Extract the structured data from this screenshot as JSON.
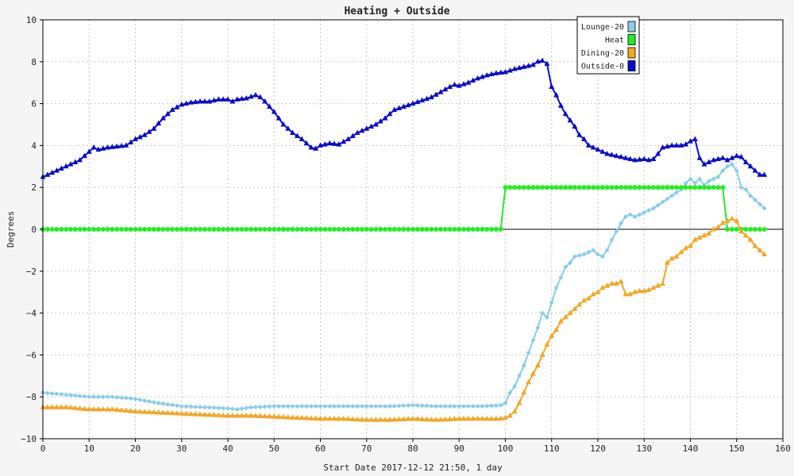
{
  "chart_data": {
    "type": "line",
    "title": "Heating + Outside",
    "xlabel": "Start Date 2017-12-12 21:50, 1 day",
    "ylabel": "Degrees",
    "xlim": [
      0,
      160
    ],
    "ylim": [
      -10,
      10
    ],
    "xticks": [
      0,
      10,
      20,
      30,
      40,
      50,
      60,
      70,
      80,
      90,
      100,
      110,
      120,
      130,
      140,
      150,
      160
    ],
    "yticks": [
      -10,
      -8,
      -6,
      -4,
      -2,
      0,
      2,
      4,
      6,
      8,
      10
    ],
    "grid": true,
    "legend_position": "top-right",
    "series": [
      {
        "name": "Lounge-20",
        "color": "#87ceeb",
        "marker": "diamond",
        "points": [
          [
            0,
            -7.8
          ],
          [
            5,
            -7.9
          ],
          [
            10,
            -8.0
          ],
          [
            15,
            -8.0
          ],
          [
            20,
            -8.1
          ],
          [
            25,
            -8.3
          ],
          [
            30,
            -8.45
          ],
          [
            35,
            -8.5
          ],
          [
            40,
            -8.55
          ],
          [
            42,
            -8.6
          ],
          [
            45,
            -8.5
          ],
          [
            50,
            -8.45
          ],
          [
            55,
            -8.45
          ],
          [
            60,
            -8.45
          ],
          [
            65,
            -8.45
          ],
          [
            70,
            -8.45
          ],
          [
            75,
            -8.45
          ],
          [
            80,
            -8.4
          ],
          [
            85,
            -8.45
          ],
          [
            90,
            -8.45
          ],
          [
            95,
            -8.45
          ],
          [
            99,
            -8.4
          ],
          [
            100,
            -8.3
          ],
          [
            101,
            -7.8
          ],
          [
            102,
            -7.5
          ],
          [
            103,
            -7.0
          ],
          [
            104,
            -6.5
          ],
          [
            105,
            -5.9
          ],
          [
            106,
            -5.3
          ],
          [
            107,
            -4.7
          ],
          [
            108,
            -4.0
          ],
          [
            109,
            -4.2
          ],
          [
            110,
            -3.5
          ],
          [
            111,
            -2.8
          ],
          [
            112,
            -2.3
          ],
          [
            113,
            -1.8
          ],
          [
            114,
            -1.6
          ],
          [
            115,
            -1.3
          ],
          [
            117,
            -1.2
          ],
          [
            119,
            -1.0
          ],
          [
            120,
            -1.2
          ],
          [
            121,
            -1.3
          ],
          [
            122,
            -1.0
          ],
          [
            123,
            -0.5
          ],
          [
            124,
            -0.1
          ],
          [
            125,
            0.3
          ],
          [
            126,
            0.6
          ],
          [
            127,
            0.7
          ],
          [
            128,
            0.6
          ],
          [
            130,
            0.8
          ],
          [
            132,
            1.0
          ],
          [
            134,
            1.3
          ],
          [
            136,
            1.6
          ],
          [
            138,
            1.9
          ],
          [
            139,
            2.2
          ],
          [
            140,
            2.4
          ],
          [
            141,
            2.2
          ],
          [
            142,
            2.4
          ],
          [
            143,
            2.1
          ],
          [
            144,
            2.3
          ],
          [
            146,
            2.5
          ],
          [
            147,
            2.8
          ],
          [
            148,
            3.0
          ],
          [
            149,
            3.1
          ],
          [
            150,
            2.8
          ],
          [
            151,
            2.0
          ],
          [
            152,
            1.9
          ],
          [
            153,
            1.6
          ],
          [
            154,
            1.4
          ],
          [
            155,
            1.2
          ],
          [
            156,
            1.0
          ]
        ]
      },
      {
        "name": "Heat",
        "color": "#22ee22",
        "marker": "circle",
        "points": [
          [
            0,
            0
          ],
          [
            99,
            0
          ],
          [
            100,
            2
          ],
          [
            147,
            2
          ],
          [
            148,
            0
          ],
          [
            156,
            0
          ]
        ]
      },
      {
        "name": "Dining-20",
        "color": "#f5a623",
        "marker": "triangle",
        "points": [
          [
            0,
            -8.5
          ],
          [
            5,
            -8.5
          ],
          [
            10,
            -8.6
          ],
          [
            15,
            -8.6
          ],
          [
            20,
            -8.7
          ],
          [
            25,
            -8.75
          ],
          [
            30,
            -8.8
          ],
          [
            35,
            -8.85
          ],
          [
            40,
            -8.9
          ],
          [
            45,
            -8.9
          ],
          [
            50,
            -8.95
          ],
          [
            55,
            -9.0
          ],
          [
            60,
            -9.05
          ],
          [
            65,
            -9.05
          ],
          [
            70,
            -9.1
          ],
          [
            75,
            -9.1
          ],
          [
            80,
            -9.05
          ],
          [
            85,
            -9.1
          ],
          [
            90,
            -9.05
          ],
          [
            95,
            -9.05
          ],
          [
            99,
            -9.05
          ],
          [
            100,
            -9.0
          ],
          [
            101,
            -8.9
          ],
          [
            102,
            -8.7
          ],
          [
            103,
            -8.3
          ],
          [
            104,
            -7.8
          ],
          [
            105,
            -7.3
          ],
          [
            106,
            -6.9
          ],
          [
            107,
            -6.5
          ],
          [
            108,
            -6.0
          ],
          [
            109,
            -5.5
          ],
          [
            110,
            -5.1
          ],
          [
            111,
            -4.8
          ],
          [
            112,
            -4.4
          ],
          [
            113,
            -4.2
          ],
          [
            114,
            -4.0
          ],
          [
            115,
            -3.8
          ],
          [
            116,
            -3.6
          ],
          [
            117,
            -3.4
          ],
          [
            118,
            -3.3
          ],
          [
            119,
            -3.1
          ],
          [
            120,
            -3.0
          ],
          [
            121,
            -2.8
          ],
          [
            122,
            -2.7
          ],
          [
            123,
            -2.6
          ],
          [
            124,
            -2.6
          ],
          [
            125,
            -2.5
          ],
          [
            126,
            -3.1
          ],
          [
            127,
            -3.1
          ],
          [
            128,
            -3.0
          ],
          [
            129,
            -2.95
          ],
          [
            130,
            -2.95
          ],
          [
            131,
            -2.9
          ],
          [
            132,
            -2.8
          ],
          [
            133,
            -2.7
          ],
          [
            134,
            -2.6
          ],
          [
            135,
            -1.6
          ],
          [
            136,
            -1.4
          ],
          [
            137,
            -1.3
          ],
          [
            138,
            -1.1
          ],
          [
            139,
            -0.9
          ],
          [
            140,
            -0.8
          ],
          [
            141,
            -0.5
          ],
          [
            142,
            -0.4
          ],
          [
            143,
            -0.3
          ],
          [
            144,
            -0.2
          ],
          [
            145,
            0.0
          ],
          [
            146,
            0.1
          ],
          [
            147,
            0.3
          ],
          [
            148,
            0.4
          ],
          [
            149,
            0.5
          ],
          [
            150,
            0.4
          ],
          [
            151,
            -0.1
          ],
          [
            152,
            -0.3
          ],
          [
            153,
            -0.5
          ],
          [
            154,
            -0.8
          ],
          [
            155,
            -1.0
          ],
          [
            156,
            -1.2
          ]
        ]
      },
      {
        "name": "Outside-0",
        "color": "#0a0ad0",
        "marker": "triangle",
        "points": [
          [
            0,
            2.5
          ],
          [
            2,
            2.7
          ],
          [
            4,
            2.9
          ],
          [
            6,
            3.1
          ],
          [
            8,
            3.3
          ],
          [
            9,
            3.5
          ],
          [
            10,
            3.7
          ],
          [
            11,
            3.9
          ],
          [
            12,
            3.8
          ],
          [
            14,
            3.9
          ],
          [
            16,
            3.95
          ],
          [
            18,
            4.0
          ],
          [
            20,
            4.3
          ],
          [
            22,
            4.5
          ],
          [
            24,
            4.8
          ],
          [
            26,
            5.3
          ],
          [
            28,
            5.7
          ],
          [
            30,
            5.95
          ],
          [
            32,
            6.05
          ],
          [
            34,
            6.1
          ],
          [
            36,
            6.1
          ],
          [
            38,
            6.2
          ],
          [
            40,
            6.2
          ],
          [
            41,
            6.1
          ],
          [
            42,
            6.2
          ],
          [
            44,
            6.25
          ],
          [
            46,
            6.4
          ],
          [
            47,
            6.3
          ],
          [
            48,
            6.1
          ],
          [
            50,
            5.6
          ],
          [
            52,
            5.0
          ],
          [
            54,
            4.6
          ],
          [
            56,
            4.3
          ],
          [
            58,
            3.9
          ],
          [
            59,
            3.85
          ],
          [
            60,
            4.0
          ],
          [
            62,
            4.1
          ],
          [
            64,
            4.05
          ],
          [
            66,
            4.3
          ],
          [
            68,
            4.6
          ],
          [
            70,
            4.8
          ],
          [
            72,
            5.0
          ],
          [
            74,
            5.3
          ],
          [
            76,
            5.7
          ],
          [
            78,
            5.85
          ],
          [
            80,
            6.0
          ],
          [
            82,
            6.15
          ],
          [
            84,
            6.3
          ],
          [
            86,
            6.55
          ],
          [
            88,
            6.8
          ],
          [
            89,
            6.9
          ],
          [
            90,
            6.85
          ],
          [
            92,
            7.0
          ],
          [
            94,
            7.2
          ],
          [
            96,
            7.35
          ],
          [
            98,
            7.45
          ],
          [
            100,
            7.5
          ],
          [
            102,
            7.65
          ],
          [
            104,
            7.75
          ],
          [
            106,
            7.85
          ],
          [
            107,
            8.0
          ],
          [
            108,
            8.05
          ],
          [
            109,
            7.9
          ],
          [
            110,
            6.8
          ],
          [
            111,
            6.4
          ],
          [
            112,
            5.9
          ],
          [
            113,
            5.5
          ],
          [
            114,
            5.2
          ],
          [
            115,
            4.9
          ],
          [
            116,
            4.5
          ],
          [
            117,
            4.3
          ],
          [
            118,
            4.0
          ],
          [
            120,
            3.8
          ],
          [
            122,
            3.6
          ],
          [
            124,
            3.5
          ],
          [
            126,
            3.4
          ],
          [
            128,
            3.3
          ],
          [
            130,
            3.35
          ],
          [
            131,
            3.3
          ],
          [
            132,
            3.35
          ],
          [
            133,
            3.6
          ],
          [
            134,
            3.9
          ],
          [
            136,
            4.0
          ],
          [
            138,
            4.0
          ],
          [
            139,
            4.05
          ],
          [
            140,
            4.2
          ],
          [
            141,
            4.3
          ],
          [
            142,
            3.4
          ],
          [
            143,
            3.1
          ],
          [
            144,
            3.2
          ],
          [
            145,
            3.3
          ],
          [
            147,
            3.4
          ],
          [
            148,
            3.3
          ],
          [
            150,
            3.5
          ],
          [
            151,
            3.45
          ],
          [
            152,
            3.2
          ],
          [
            153,
            3.0
          ],
          [
            154,
            2.8
          ],
          [
            155,
            2.6
          ],
          [
            156,
            2.6
          ]
        ]
      }
    ]
  }
}
